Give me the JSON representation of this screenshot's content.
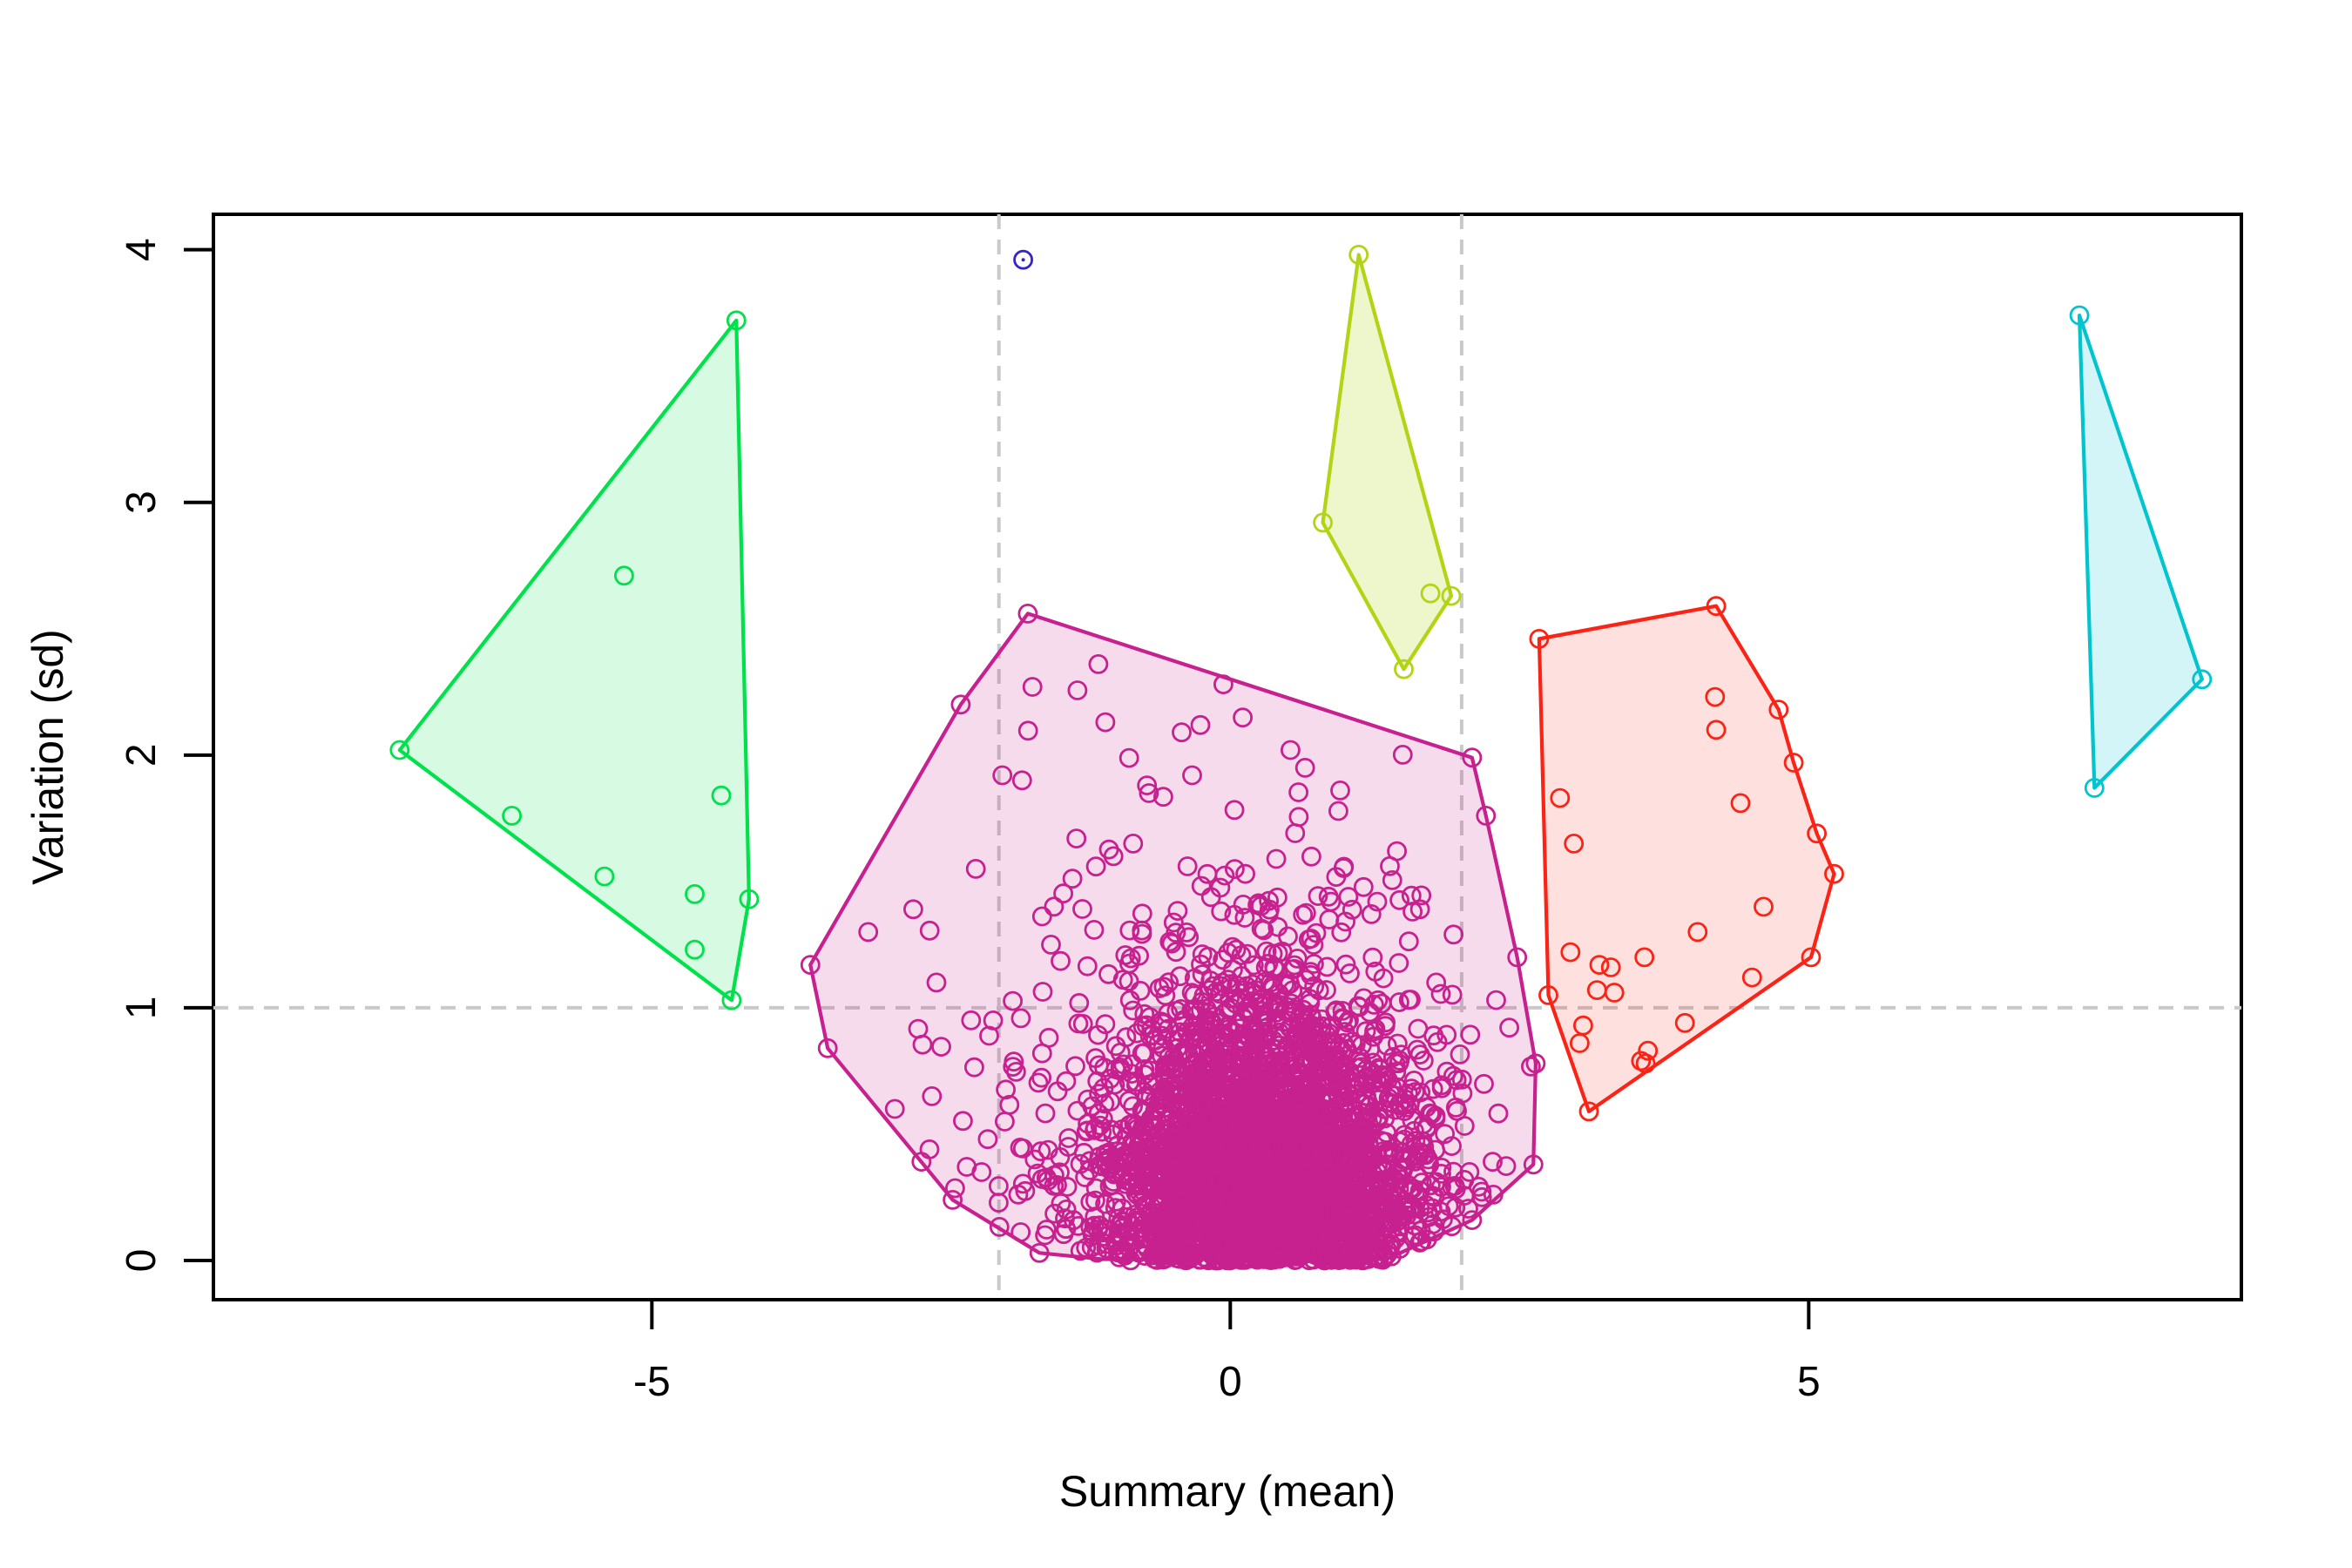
{
  "figure": {
    "xlabel": "Summary (mean)",
    "ylabel": "Variation (sd)",
    "x_tick_labels": [
      "-5",
      "0",
      "5"
    ],
    "x_tick_values": [
      -5,
      0,
      5
    ],
    "y_tick_labels": [
      "0",
      "1",
      "2",
      "3",
      "4"
    ],
    "y_tick_values": [
      0,
      1,
      2,
      3,
      4
    ],
    "xlim": [
      -8.79,
      8.74
    ],
    "ylim": [
      -0.155,
      4.14
    ],
    "background": "#ffffff",
    "axis_color": "#000000",
    "guides": {
      "color": "#c9c9c9",
      "vertical_x": [
        -2,
        2
      ],
      "horizontal_y": [
        1
      ],
      "dash": [
        17,
        12
      ]
    }
  },
  "chart_data": {
    "type": "scatter",
    "title": "",
    "xlabel": "Summary (mean)",
    "ylabel": "Variation (sd)",
    "xlim": [
      -8.79,
      8.74
    ],
    "ylim": [
      -0.155,
      4.14
    ],
    "legend": "none",
    "grid": "off",
    "point_style": {
      "radius_px": 10,
      "stroke_width_px": 2.8,
      "fill": "none"
    },
    "clusters": [
      {
        "name": "main-cluster",
        "color": "#c7208f",
        "fill": "rgba(199,32,143,0.16)",
        "hull": [
          [
            -1.75,
            2.56
          ],
          [
            2.09,
            1.99
          ],
          [
            2.21,
            1.76
          ],
          [
            2.48,
            1.2
          ],
          [
            2.64,
            0.78
          ],
          [
            2.62,
            0.38
          ],
          [
            2.09,
            0.16
          ],
          [
            1.35,
            0.005
          ],
          [
            -1.1,
            0.005
          ],
          [
            -1.65,
            0.03
          ],
          [
            -2.4,
            0.24
          ],
          [
            -3.48,
            0.84
          ],
          [
            -3.63,
            1.17
          ],
          [
            -2.33,
            2.2
          ]
        ],
        "points": [
          [
            -1.75,
            2.56
          ],
          [
            -2.33,
            2.2
          ],
          [
            -3.63,
            1.17
          ],
          [
            -3.48,
            0.84
          ],
          [
            -2.4,
            0.24
          ],
          [
            -1.65,
            0.03
          ],
          [
            2.09,
            1.99
          ],
          [
            2.21,
            1.76
          ],
          [
            2.48,
            1.2
          ],
          [
            2.64,
            0.78
          ],
          [
            2.62,
            0.38
          ],
          [
            2.09,
            0.16
          ],
          [
            -1.14,
            2.36
          ],
          [
            -1.71,
            2.27
          ],
          [
            -1.08,
            2.13
          ],
          [
            -0.42,
            2.09
          ],
          [
            -0.33,
            1.92
          ],
          [
            -0.72,
            1.88
          ],
          [
            -1.97,
            1.92
          ],
          [
            -1.8,
            1.9
          ],
          [
            -1.33,
            1.67
          ],
          [
            -0.84,
            1.65
          ],
          [
            -1.01,
            1.6
          ],
          [
            -0.37,
            1.56
          ],
          [
            0.13,
            1.53
          ],
          [
            -2.74,
            1.39
          ],
          [
            -3.13,
            1.3
          ],
          [
            0.85,
            1.44
          ],
          [
            0.87,
            1.42
          ],
          [
            1.27,
            1.42
          ],
          [
            1.64,
            1.39
          ],
          [
            0.05,
            1.23
          ],
          [
            0.41,
            1.32
          ],
          [
            1.93,
            1.29
          ],
          [
            1.78,
            1.1
          ],
          [
            -2.54,
            1.1
          ],
          [
            -0.06,
            2.28
          ],
          [
            0.52,
            2.02
          ],
          [
            0.95,
            1.86
          ],
          [
            1.44,
            1.62
          ],
          [
            -2.2,
            1.55
          ],
          [
            -1.55,
            1.25
          ],
          [
            -2.05,
            0.95
          ],
          [
            -2.9,
            0.6
          ],
          [
            -2.6,
            0.44
          ],
          [
            -1.95,
            0.55
          ],
          [
            -2.15,
            0.35
          ],
          [
            -1.4,
            0.45
          ]
        ],
        "generated_scatter": {
          "comment": "dense unresolvable point mass near y=0; regenerated procedurally inside hull",
          "seed": 42,
          "groups": [
            {
              "count": 3200,
              "x_mean": 0.3,
              "x_sd": 0.58,
              "y_half_normal_sd": 0.45
            },
            {
              "count": 750,
              "x_mean": 0.2,
              "x_sd": 0.9,
              "y_half_normal_sd": 0.6
            },
            {
              "count": 280,
              "x_mean": 0.0,
              "x_sd": 1.2,
              "y_half_normal_sd": 0.85
            }
          ]
        }
      },
      {
        "name": "green-cluster",
        "color": "#00e14b",
        "fill": "rgba(0,225,75,0.16)",
        "hull": [
          [
            -4.27,
            3.72
          ],
          [
            -4.16,
            1.43
          ],
          [
            -4.31,
            1.03
          ],
          [
            -7.18,
            2.02
          ]
        ],
        "points": [
          [
            -4.27,
            3.72
          ],
          [
            -7.18,
            2.02
          ],
          [
            -5.24,
            2.71
          ],
          [
            -6.21,
            1.76
          ],
          [
            -5.41,
            1.52
          ],
          [
            -4.4,
            1.84
          ],
          [
            -4.63,
            1.45
          ],
          [
            -4.63,
            1.23
          ],
          [
            -4.16,
            1.43
          ],
          [
            -4.31,
            1.03
          ]
        ]
      },
      {
        "name": "yellow-cluster",
        "color": "#b2d414",
        "fill": "rgba(178,212,20,0.22)",
        "hull": [
          [
            1.11,
            3.98
          ],
          [
            1.91,
            2.63
          ],
          [
            1.5,
            2.34
          ],
          [
            0.8,
            2.92
          ]
        ],
        "points": [
          [
            1.11,
            3.98
          ],
          [
            0.8,
            2.92
          ],
          [
            1.73,
            2.64
          ],
          [
            1.91,
            2.63
          ],
          [
            1.5,
            2.34
          ]
        ]
      },
      {
        "name": "red-cluster",
        "color": "#fa2316",
        "fill": "rgba(250,35,22,0.14)",
        "hull": [
          [
            2.67,
            2.46
          ],
          [
            4.2,
            2.59
          ],
          [
            4.74,
            2.18
          ],
          [
            4.87,
            1.97
          ],
          [
            5.07,
            1.69
          ],
          [
            5.22,
            1.53
          ],
          [
            5.02,
            1.2
          ],
          [
            3.1,
            0.59
          ],
          [
            2.75,
            1.05
          ]
        ],
        "points": [
          [
            2.67,
            2.46
          ],
          [
            4.2,
            2.59
          ],
          [
            4.74,
            2.18
          ],
          [
            4.87,
            1.97
          ],
          [
            5.07,
            1.69
          ],
          [
            5.22,
            1.53
          ],
          [
            5.02,
            1.2
          ],
          [
            3.1,
            0.59
          ],
          [
            2.75,
            1.05
          ],
          [
            4.19,
            2.23
          ],
          [
            4.2,
            2.1
          ],
          [
            4.41,
            1.81
          ],
          [
            4.61,
            1.4
          ],
          [
            4.04,
            1.3
          ],
          [
            4.51,
            1.12
          ],
          [
            2.85,
            1.83
          ],
          [
            2.97,
            1.65
          ],
          [
            2.94,
            1.22
          ],
          [
            3.19,
            1.17
          ],
          [
            3.29,
            1.16
          ],
          [
            3.17,
            1.07
          ],
          [
            3.32,
            1.06
          ],
          [
            3.58,
            1.2
          ],
          [
            3.05,
            0.93
          ],
          [
            3.02,
            0.86
          ],
          [
            3.61,
            0.83
          ],
          [
            3.55,
            0.79
          ],
          [
            3.59,
            0.78
          ],
          [
            3.93,
            0.94
          ]
        ]
      },
      {
        "name": "cyan-cluster",
        "color": "#00c4ce",
        "fill": "rgba(0,196,206,0.17)",
        "hull": [
          [
            7.34,
            3.74
          ],
          [
            8.4,
            2.3
          ],
          [
            7.47,
            1.87
          ]
        ],
        "points": [
          [
            7.34,
            3.74
          ],
          [
            8.4,
            2.3
          ],
          [
            7.47,
            1.87
          ]
        ]
      }
    ],
    "outlier": {
      "name": "blue-outlier-point",
      "color": "#3723cb",
      "points": [
        [
          -1.79,
          3.96
        ]
      ]
    }
  }
}
